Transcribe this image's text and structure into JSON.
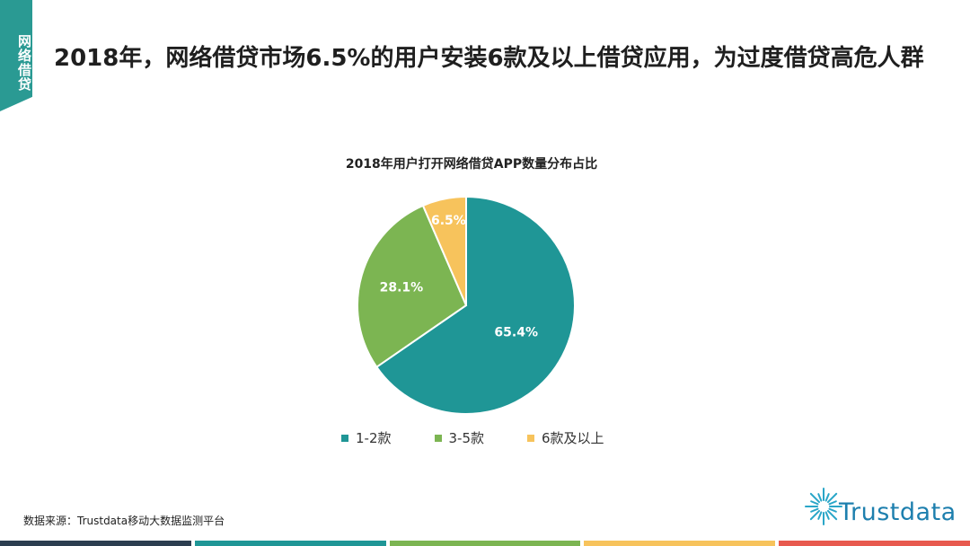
{
  "header": {
    "section_tab": "网络借贷",
    "title": "2018年，网络借贷市场6.5%的用户安装6款及以上借贷应用，为过度借贷高危人群"
  },
  "chart_data": {
    "type": "pie",
    "title": "2018年用户打开网络借贷APP数量分布占比",
    "categories": [
      "1-2款",
      "3-5款",
      "6款及以上"
    ],
    "values": [
      65.4,
      28.1,
      6.5
    ],
    "data_labels": [
      "65.4%",
      "28.1%",
      "6.5%"
    ],
    "colors": [
      "#1f9696",
      "#7cb552",
      "#f7c35c"
    ],
    "legend_position": "bottom"
  },
  "footer": {
    "source": "数据来源：Trustdata移动大数据监测平台",
    "logo_text": "Trustdata",
    "bar_colors": [
      "#2c3e50",
      "#1f9696",
      "#7cb552",
      "#f7c35c",
      "#e85a4f"
    ]
  },
  "colors": {
    "accent": "#2a9a93",
    "logo": "#1d7fae"
  }
}
